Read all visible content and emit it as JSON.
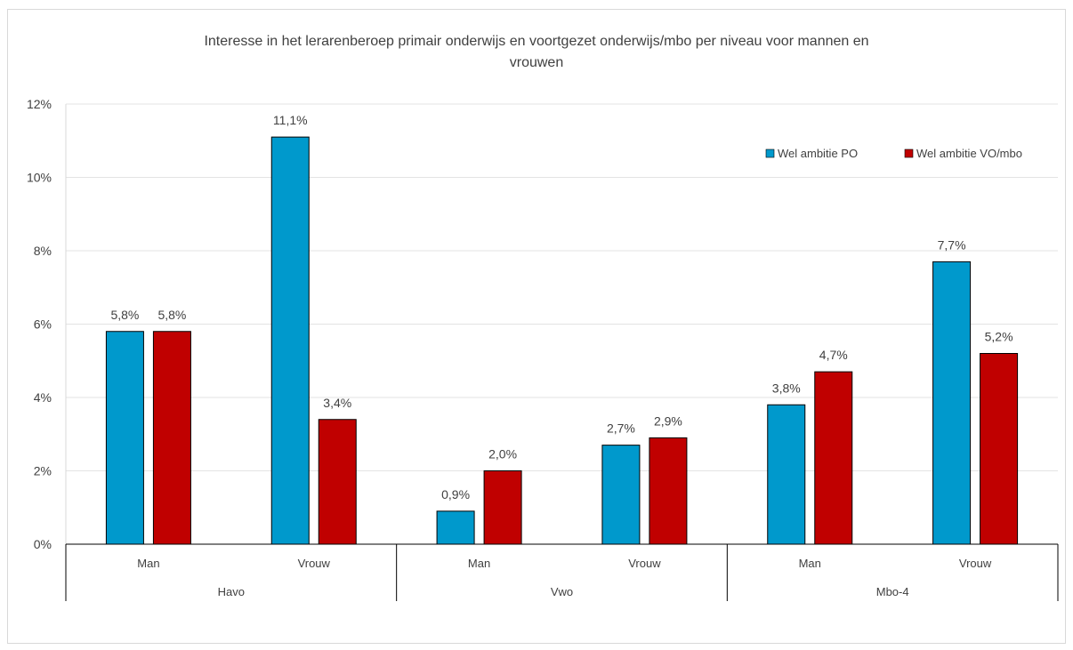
{
  "chart_data": {
    "type": "bar",
    "title": "Interesse in het lerarenberoep primair onderwijs en voortgezet onderwijs/mbo per niveau voor mannen en vrouwen",
    "title_lines": [
      "Interesse in het lerarenberoep primair onderwijs en voortgezet onderwijs/mbo per niveau voor mannen en",
      "vrouwen"
    ],
    "xlabel": "",
    "ylabel": "",
    "ylim": [
      0,
      12
    ],
    "yticks": [
      "0%",
      "2%",
      "4%",
      "6%",
      "8%",
      "10%",
      "12%"
    ],
    "groups": [
      "Havo",
      "Vwo",
      "Mbo-4"
    ],
    "categories": [
      "Man",
      "Vrouw",
      "Man",
      "Vrouw",
      "Man",
      "Vrouw"
    ],
    "series": [
      {
        "name": "Wel ambitie PO",
        "color": "#0099CC",
        "values": [
          5.8,
          11.1,
          0.9,
          2.7,
          3.8,
          7.7
        ],
        "labels": [
          "5,8%",
          "11,1%",
          "0,9%",
          "2,7%",
          "3,8%",
          "7,7%"
        ]
      },
      {
        "name": "Wel ambitie VO/mbo",
        "color": "#C00000",
        "values": [
          5.8,
          3.4,
          2.0,
          2.9,
          4.7,
          5.2
        ],
        "labels": [
          "5,8%",
          "3,4%",
          "2,0%",
          "2,9%",
          "4,7%",
          "5,2%"
        ]
      }
    ],
    "grid": true,
    "legend_position": "top-right"
  }
}
